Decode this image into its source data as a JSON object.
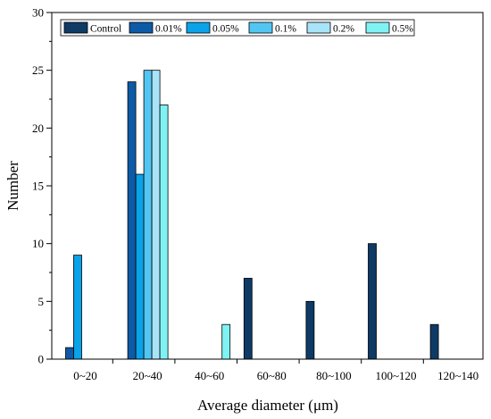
{
  "chart_data": {
    "type": "bar",
    "xlabel": "Average diameter (μm)",
    "ylabel": "Number",
    "ylim": [
      0,
      30
    ],
    "yticks": [
      0,
      5,
      10,
      15,
      20,
      25,
      30
    ],
    "categories": [
      "0~20",
      "20~40",
      "40~60",
      "60~80",
      "80~100",
      "100~120",
      "120~140"
    ],
    "legend_position": "top",
    "grid": false,
    "series": [
      {
        "name": "Control",
        "color": "#0e3a66",
        "values": [
          0,
          0,
          0,
          7,
          5,
          10,
          3
        ]
      },
      {
        "name": "0.01%",
        "color": "#0d5aa7",
        "values": [
          1,
          24,
          0,
          0,
          0,
          0,
          0
        ]
      },
      {
        "name": "0.05%",
        "color": "#0aa2e8",
        "values": [
          9,
          16,
          0,
          0,
          0,
          0,
          0
        ]
      },
      {
        "name": "0.1%",
        "color": "#52c6f2",
        "values": [
          0,
          25,
          0,
          0,
          0,
          0,
          0
        ]
      },
      {
        "name": "0.2%",
        "color": "#a8e4f8",
        "values": [
          0,
          25,
          0,
          0,
          0,
          0,
          0
        ]
      },
      {
        "name": "0.5%",
        "color": "#7ff2f4",
        "values": [
          0,
          22,
          3,
          0,
          0,
          0,
          0
        ]
      }
    ]
  }
}
